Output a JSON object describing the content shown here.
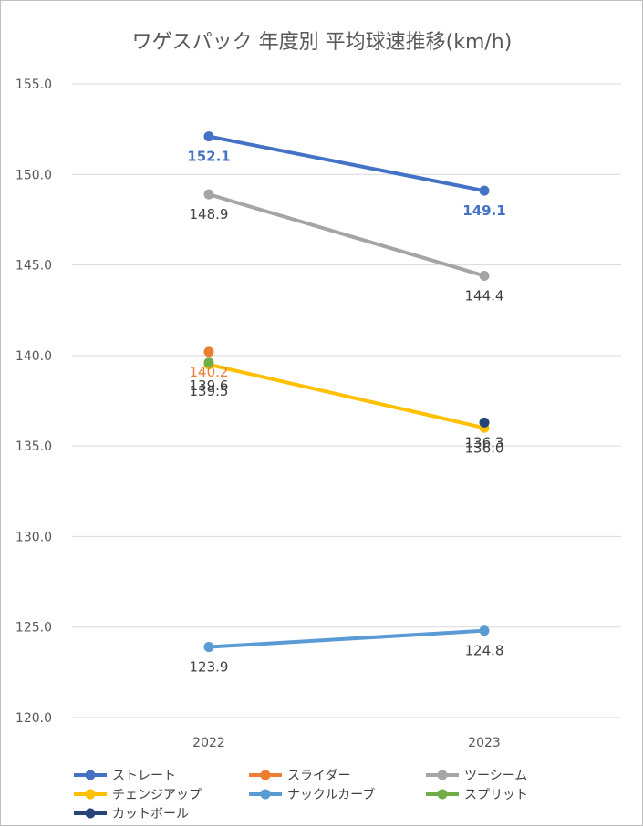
{
  "chart_data": {
    "type": "line",
    "title": "ワゲスパック 年度別 平均球速推移(km/h)",
    "categories": [
      "2022",
      "2023"
    ],
    "ylim": [
      120,
      155
    ],
    "yticks": [
      "120.0",
      "125.0",
      "130.0",
      "135.0",
      "140.0",
      "145.0",
      "150.0",
      "155.0"
    ],
    "grid": true,
    "legend_position": "bottom",
    "series": [
      {
        "name": "ストレート",
        "color": "#4472c4",
        "values": [
          152.1,
          149.1
        ],
        "labels": [
          "152.1",
          "149.1"
        ],
        "label_color": "#4472c4",
        "label_weight": "bold"
      },
      {
        "name": "スライダー",
        "color": "#ed7d31",
        "values": [
          140.2,
          null
        ],
        "labels": [
          "140.2",
          ""
        ],
        "label_color": "#ed7d31",
        "label_weight": "normal"
      },
      {
        "name": "ツーシーム",
        "color": "#a5a5a5",
        "values": [
          148.9,
          144.4
        ],
        "labels": [
          "148.9",
          "144.4"
        ],
        "label_color": "#404040",
        "label_weight": "normal"
      },
      {
        "name": "チェンジアップ",
        "color": "#ffc000",
        "values": [
          139.5,
          136.0
        ],
        "labels": [
          "139.5",
          "136.0"
        ],
        "label_color": "#404040",
        "label_weight": "normal"
      },
      {
        "name": "ナックルカーブ",
        "color": "#5b9bd5",
        "values": [
          123.9,
          124.8
        ],
        "labels": [
          "123.9",
          "124.8"
        ],
        "label_color": "#404040",
        "label_weight": "normal"
      },
      {
        "name": "スプリット",
        "color": "#70ad47",
        "values": [
          139.6,
          null
        ],
        "labels": [
          "139.6",
          ""
        ],
        "label_color": "#404040",
        "label_weight": "normal"
      },
      {
        "name": "カットボール",
        "color": "#264478",
        "values": [
          null,
          136.3
        ],
        "labels": [
          "",
          "136.3"
        ],
        "label_color": "#404040",
        "label_weight": "normal"
      }
    ]
  }
}
